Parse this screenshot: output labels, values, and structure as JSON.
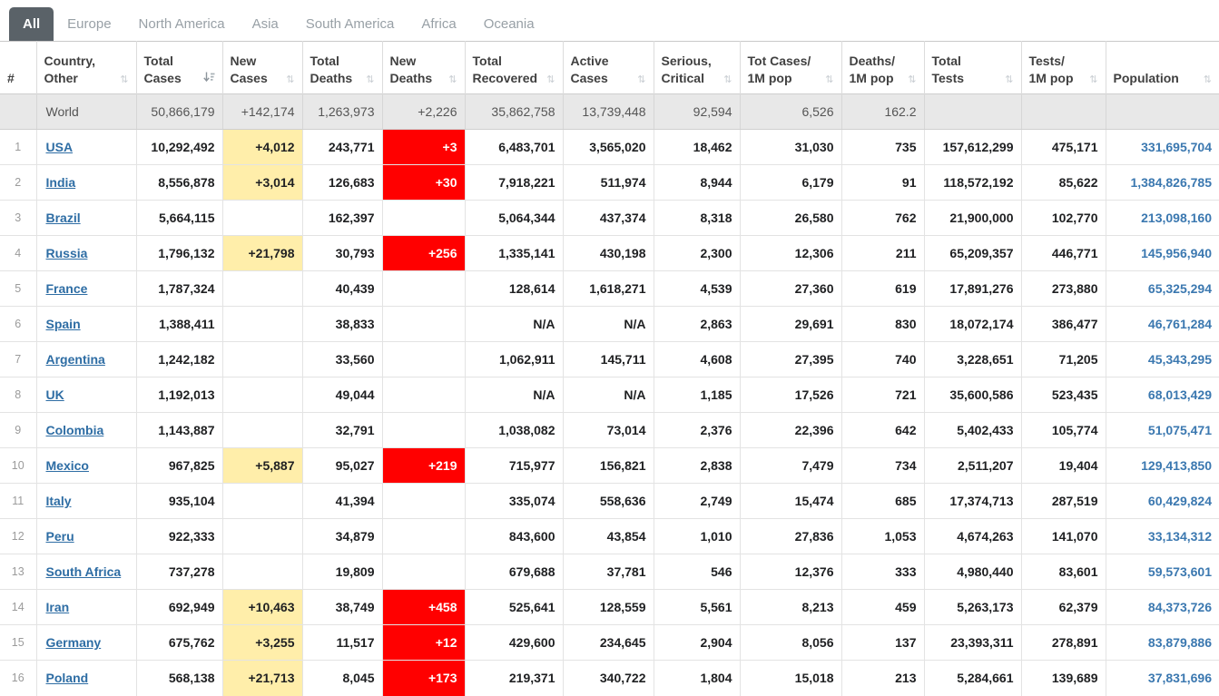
{
  "tabs": [
    {
      "label": "All",
      "active": true
    },
    {
      "label": "Europe",
      "active": false
    },
    {
      "label": "North America",
      "active": false
    },
    {
      "label": "Asia",
      "active": false
    },
    {
      "label": "South America",
      "active": false
    },
    {
      "label": "Africa",
      "active": false
    },
    {
      "label": "Oceania",
      "active": false
    }
  ],
  "icons": {
    "sort_both": "sort-toggle-icon (up/down arrows, ⇅)",
    "sort_desc": "sort-descending-icon (down arrow with bars)"
  },
  "colors": {
    "active_tab_bg": "#5a6268",
    "inactive_tab_text": "#98a0a6",
    "highlight_yellow": "#ffeeaa",
    "highlight_red": "#ff0000",
    "country_link_blue": "#2e6da4",
    "population_blue": "#3b78b0",
    "world_row_bg": "#e8e8e8"
  },
  "table": {
    "columns": [
      {
        "key": "rank",
        "line1": "",
        "line2": "#",
        "sort": "none",
        "width": 40
      },
      {
        "key": "country",
        "line1": "Country,",
        "line2": "Other",
        "sort": "inactive",
        "width": 110
      },
      {
        "key": "total_cases",
        "line1": "Total",
        "line2": "Cases",
        "sort": "desc",
        "width": 95
      },
      {
        "key": "new_cases",
        "line1": "New",
        "line2": "Cases",
        "sort": "inactive",
        "width": 88
      },
      {
        "key": "total_deaths",
        "line1": "Total",
        "line2": "Deaths",
        "sort": "inactive",
        "width": 88
      },
      {
        "key": "new_deaths",
        "line1": "New",
        "line2": "Deaths",
        "sort": "inactive",
        "width": 91
      },
      {
        "key": "total_recovered",
        "line1": "Total",
        "line2": "Recovered",
        "sort": "inactive",
        "width": 108
      },
      {
        "key": "active_cases",
        "line1": "Active",
        "line2": "Cases",
        "sort": "inactive",
        "width": 100
      },
      {
        "key": "serious_critical",
        "line1": "Serious,",
        "line2": "Critical",
        "sort": "inactive",
        "width": 95
      },
      {
        "key": "tot_cases_1m",
        "line1": "Tot Cases/",
        "line2": "1M pop",
        "sort": "inactive",
        "width": 112
      },
      {
        "key": "deaths_1m",
        "line1": "Deaths/",
        "line2": "1M pop",
        "sort": "inactive",
        "width": 91
      },
      {
        "key": "total_tests",
        "line1": "Total",
        "line2": "Tests",
        "sort": "inactive",
        "width": 107
      },
      {
        "key": "tests_1m",
        "line1": "Tests/",
        "line2": "1M pop",
        "sort": "inactive",
        "width": 93
      },
      {
        "key": "population",
        "line1": "",
        "line2": "Population",
        "sort": "inactive",
        "width": 125
      }
    ],
    "world_row": {
      "country": "World",
      "total_cases": "50,866,179",
      "new_cases": "+142,174",
      "total_deaths": "1,263,973",
      "new_deaths": "+2,226",
      "total_recovered": "35,862,758",
      "active_cases": "13,739,448",
      "serious_critical": "92,594",
      "tot_cases_1m": "6,526",
      "deaths_1m": "162.2",
      "total_tests": "",
      "tests_1m": "",
      "population": ""
    },
    "rows": [
      {
        "rank": "1",
        "country": "USA",
        "total_cases": "10,292,492",
        "new_cases": "+4,012",
        "total_deaths": "243,771",
        "new_deaths": "+3",
        "total_recovered": "6,483,701",
        "active_cases": "3,565,020",
        "serious_critical": "18,462",
        "tot_cases_1m": "31,030",
        "deaths_1m": "735",
        "total_tests": "157,612,299",
        "tests_1m": "475,171",
        "population": "331,695,704"
      },
      {
        "rank": "2",
        "country": "India",
        "total_cases": "8,556,878",
        "new_cases": "+3,014",
        "total_deaths": "126,683",
        "new_deaths": "+30",
        "total_recovered": "7,918,221",
        "active_cases": "511,974",
        "serious_critical": "8,944",
        "tot_cases_1m": "6,179",
        "deaths_1m": "91",
        "total_tests": "118,572,192",
        "tests_1m": "85,622",
        "population": "1,384,826,785"
      },
      {
        "rank": "3",
        "country": "Brazil",
        "total_cases": "5,664,115",
        "new_cases": "",
        "total_deaths": "162,397",
        "new_deaths": "",
        "total_recovered": "5,064,344",
        "active_cases": "437,374",
        "serious_critical": "8,318",
        "tot_cases_1m": "26,580",
        "deaths_1m": "762",
        "total_tests": "21,900,000",
        "tests_1m": "102,770",
        "population": "213,098,160"
      },
      {
        "rank": "4",
        "country": "Russia",
        "total_cases": "1,796,132",
        "new_cases": "+21,798",
        "total_deaths": "30,793",
        "new_deaths": "+256",
        "total_recovered": "1,335,141",
        "active_cases": "430,198",
        "serious_critical": "2,300",
        "tot_cases_1m": "12,306",
        "deaths_1m": "211",
        "total_tests": "65,209,357",
        "tests_1m": "446,771",
        "population": "145,956,940"
      },
      {
        "rank": "5",
        "country": "France",
        "total_cases": "1,787,324",
        "new_cases": "",
        "total_deaths": "40,439",
        "new_deaths": "",
        "total_recovered": "128,614",
        "active_cases": "1,618,271",
        "serious_critical": "4,539",
        "tot_cases_1m": "27,360",
        "deaths_1m": "619",
        "total_tests": "17,891,276",
        "tests_1m": "273,880",
        "population": "65,325,294"
      },
      {
        "rank": "6",
        "country": "Spain",
        "total_cases": "1,388,411",
        "new_cases": "",
        "total_deaths": "38,833",
        "new_deaths": "",
        "total_recovered": "N/A",
        "active_cases": "N/A",
        "serious_critical": "2,863",
        "tot_cases_1m": "29,691",
        "deaths_1m": "830",
        "total_tests": "18,072,174",
        "tests_1m": "386,477",
        "population": "46,761,284"
      },
      {
        "rank": "7",
        "country": "Argentina",
        "total_cases": "1,242,182",
        "new_cases": "",
        "total_deaths": "33,560",
        "new_deaths": "",
        "total_recovered": "1,062,911",
        "active_cases": "145,711",
        "serious_critical": "4,608",
        "tot_cases_1m": "27,395",
        "deaths_1m": "740",
        "total_tests": "3,228,651",
        "tests_1m": "71,205",
        "population": "45,343,295"
      },
      {
        "rank": "8",
        "country": "UK",
        "total_cases": "1,192,013",
        "new_cases": "",
        "total_deaths": "49,044",
        "new_deaths": "",
        "total_recovered": "N/A",
        "active_cases": "N/A",
        "serious_critical": "1,185",
        "tot_cases_1m": "17,526",
        "deaths_1m": "721",
        "total_tests": "35,600,586",
        "tests_1m": "523,435",
        "population": "68,013,429"
      },
      {
        "rank": "9",
        "country": "Colombia",
        "total_cases": "1,143,887",
        "new_cases": "",
        "total_deaths": "32,791",
        "new_deaths": "",
        "total_recovered": "1,038,082",
        "active_cases": "73,014",
        "serious_critical": "2,376",
        "tot_cases_1m": "22,396",
        "deaths_1m": "642",
        "total_tests": "5,402,433",
        "tests_1m": "105,774",
        "population": "51,075,471"
      },
      {
        "rank": "10",
        "country": "Mexico",
        "total_cases": "967,825",
        "new_cases": "+5,887",
        "total_deaths": "95,027",
        "new_deaths": "+219",
        "total_recovered": "715,977",
        "active_cases": "156,821",
        "serious_critical": "2,838",
        "tot_cases_1m": "7,479",
        "deaths_1m": "734",
        "total_tests": "2,511,207",
        "tests_1m": "19,404",
        "population": "129,413,850"
      },
      {
        "rank": "11",
        "country": "Italy",
        "total_cases": "935,104",
        "new_cases": "",
        "total_deaths": "41,394",
        "new_deaths": "",
        "total_recovered": "335,074",
        "active_cases": "558,636",
        "serious_critical": "2,749",
        "tot_cases_1m": "15,474",
        "deaths_1m": "685",
        "total_tests": "17,374,713",
        "tests_1m": "287,519",
        "population": "60,429,824"
      },
      {
        "rank": "12",
        "country": "Peru",
        "total_cases": "922,333",
        "new_cases": "",
        "total_deaths": "34,879",
        "new_deaths": "",
        "total_recovered": "843,600",
        "active_cases": "43,854",
        "serious_critical": "1,010",
        "tot_cases_1m": "27,836",
        "deaths_1m": "1,053",
        "total_tests": "4,674,263",
        "tests_1m": "141,070",
        "population": "33,134,312"
      },
      {
        "rank": "13",
        "country": "South Africa",
        "total_cases": "737,278",
        "new_cases": "",
        "total_deaths": "19,809",
        "new_deaths": "",
        "total_recovered": "679,688",
        "active_cases": "37,781",
        "serious_critical": "546",
        "tot_cases_1m": "12,376",
        "deaths_1m": "333",
        "total_tests": "4,980,440",
        "tests_1m": "83,601",
        "population": "59,573,601"
      },
      {
        "rank": "14",
        "country": "Iran",
        "total_cases": "692,949",
        "new_cases": "+10,463",
        "total_deaths": "38,749",
        "new_deaths": "+458",
        "total_recovered": "525,641",
        "active_cases": "128,559",
        "serious_critical": "5,561",
        "tot_cases_1m": "8,213",
        "deaths_1m": "459",
        "total_tests": "5,263,173",
        "tests_1m": "62,379",
        "population": "84,373,726"
      },
      {
        "rank": "15",
        "country": "Germany",
        "total_cases": "675,762",
        "new_cases": "+3,255",
        "total_deaths": "11,517",
        "new_deaths": "+12",
        "total_recovered": "429,600",
        "active_cases": "234,645",
        "serious_critical": "2,904",
        "tot_cases_1m": "8,056",
        "deaths_1m": "137",
        "total_tests": "23,393,311",
        "tests_1m": "278,891",
        "population": "83,879,886"
      },
      {
        "rank": "16",
        "country": "Poland",
        "total_cases": "568,138",
        "new_cases": "+21,713",
        "total_deaths": "8,045",
        "new_deaths": "+173",
        "total_recovered": "219,371",
        "active_cases": "340,722",
        "serious_critical": "1,804",
        "tot_cases_1m": "15,018",
        "deaths_1m": "213",
        "total_tests": "5,284,661",
        "tests_1m": "139,689",
        "population": "37,831,696"
      }
    ]
  }
}
